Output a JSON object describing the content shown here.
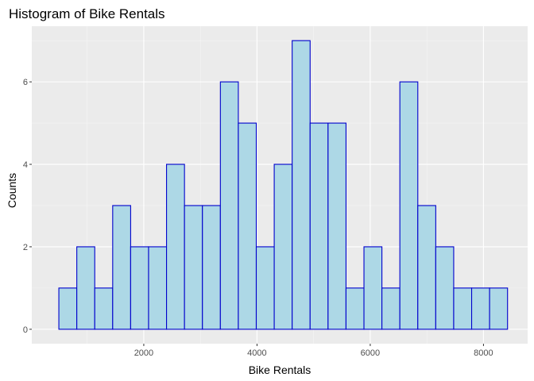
{
  "chart_data": {
    "type": "bar",
    "title": "Histogram of Bike Rentals",
    "xlabel": "Bike Rentals",
    "ylabel": "Counts",
    "xlim": [
      22,
      8780
    ],
    "ylim": [
      -0.35,
      7.35
    ],
    "x_ticks": [
      2000,
      4000,
      6000,
      8000
    ],
    "x_tick_labels": [
      "2000",
      "4000",
      "6000",
      "8000"
    ],
    "y_ticks": [
      0,
      2,
      4,
      6
    ],
    "y_tick_labels": [
      "0",
      "2",
      "4",
      "6"
    ],
    "bins": [
      {
        "start": 500,
        "end": 817,
        "count": 1
      },
      {
        "start": 817,
        "end": 1134,
        "count": 2
      },
      {
        "start": 1134,
        "end": 1451,
        "count": 1
      },
      {
        "start": 1451,
        "end": 1768,
        "count": 3
      },
      {
        "start": 1768,
        "end": 2085,
        "count": 2
      },
      {
        "start": 2085,
        "end": 2402,
        "count": 2
      },
      {
        "start": 2402,
        "end": 2719,
        "count": 4
      },
      {
        "start": 2719,
        "end": 3036,
        "count": 3
      },
      {
        "start": 3036,
        "end": 3353,
        "count": 3
      },
      {
        "start": 3353,
        "end": 3670,
        "count": 6
      },
      {
        "start": 3670,
        "end": 3987,
        "count": 5
      },
      {
        "start": 3987,
        "end": 4304,
        "count": 2
      },
      {
        "start": 4304,
        "end": 4621,
        "count": 4
      },
      {
        "start": 4621,
        "end": 4938,
        "count": 7
      },
      {
        "start": 4938,
        "end": 5255,
        "count": 5
      },
      {
        "start": 5255,
        "end": 5572,
        "count": 5
      },
      {
        "start": 5572,
        "end": 5889,
        "count": 1
      },
      {
        "start": 5889,
        "end": 6206,
        "count": 2
      },
      {
        "start": 6206,
        "end": 6523,
        "count": 1
      },
      {
        "start": 6523,
        "end": 6840,
        "count": 6
      },
      {
        "start": 6840,
        "end": 7157,
        "count": 3
      },
      {
        "start": 7157,
        "end": 7474,
        "count": 2
      },
      {
        "start": 7474,
        "end": 7791,
        "count": 1
      },
      {
        "start": 7791,
        "end": 8108,
        "count": 1
      },
      {
        "start": 8108,
        "end": 8425,
        "count": 1
      }
    ],
    "grid": true,
    "colors": {
      "panel_background": "#ebebeb",
      "grid_major": "#ffffff",
      "grid_minor": "#f5f5f5",
      "bar_fill": "#add8e6",
      "bar_outline": "#0000cd"
    }
  }
}
